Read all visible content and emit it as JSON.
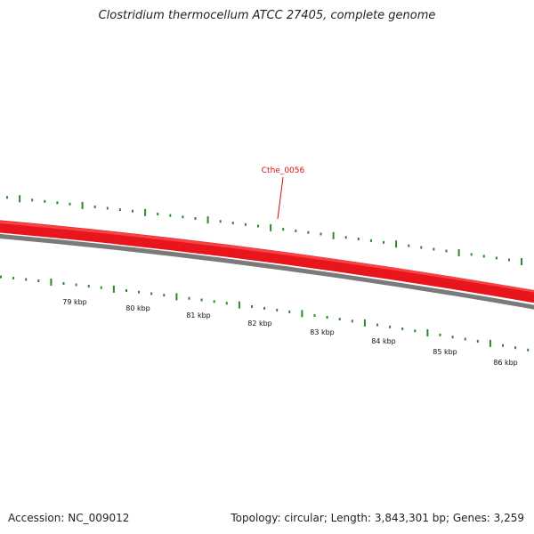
{
  "title": "Clostridium thermocellum ATCC 27405, complete genome",
  "footer": {
    "accession": "Accession: NC_009012",
    "stats": "Topology: circular; Length: 3,843,301 bp; Genes: 3,259"
  },
  "colors": {
    "gene_track": "#e8161c",
    "gene_track_light": "#ff6a6a",
    "backbone": "#7a7a7a",
    "ticks": "#2a8a2a",
    "highlight_label": "#cc1111"
  },
  "highlight_gene": {
    "label": "Cthe_0056"
  },
  "kbp_labels": [
    "79 kbp",
    "80 kbp",
    "81 kbp",
    "82 kbp",
    "83 kbp",
    "84 kbp",
    "85 kbp",
    "86 kbp"
  ]
}
